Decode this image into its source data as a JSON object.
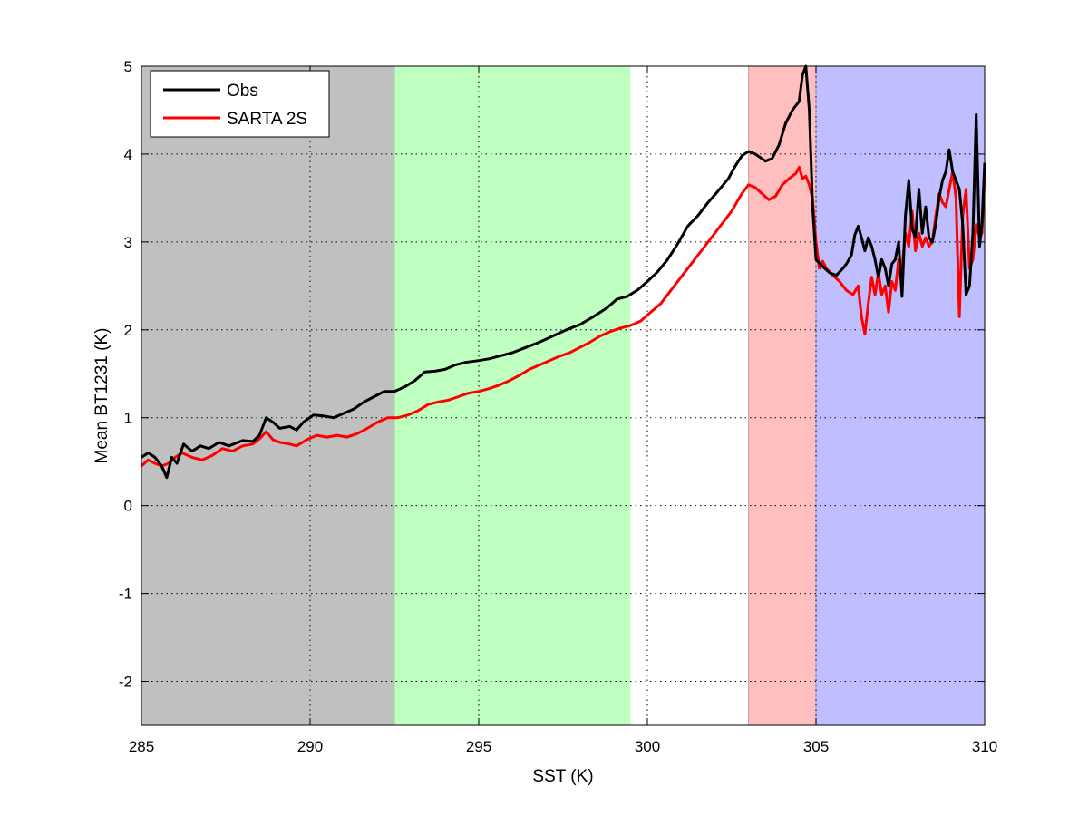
{
  "chart_data": {
    "type": "line",
    "title": "",
    "xlabel": "SST (K)",
    "ylabel": "Mean BT1231 (K)",
    "xlim": [
      285,
      310
    ],
    "ylim": [
      -2.5,
      5
    ],
    "xticks": [
      285,
      290,
      295,
      300,
      305,
      310
    ],
    "yticks": [
      -2,
      -1,
      0,
      1,
      2,
      3,
      4,
      5
    ],
    "xtick_labels": [
      "285",
      "290",
      "295",
      "300",
      "305",
      "310"
    ],
    "ytick_labels": [
      "-2",
      "-1",
      "0",
      "1",
      "2",
      "3",
      "4",
      "5"
    ],
    "grid": true,
    "legend_position": "top-left",
    "bands": [
      {
        "x0": 285,
        "x1": 292.5,
        "color": "#c0c0c0"
      },
      {
        "x0": 292.5,
        "x1": 299.5,
        "color": "#bfffbf"
      },
      {
        "x0": 303,
        "x1": 305,
        "color": "#ffbfbf"
      },
      {
        "x0": 305,
        "x1": 310,
        "color": "#bfbfff"
      }
    ],
    "series": [
      {
        "name": "Obs",
        "color": "#000000",
        "points": [
          [
            285.0,
            0.55
          ],
          [
            285.2,
            0.6
          ],
          [
            285.4,
            0.55
          ],
          [
            285.6,
            0.45
          ],
          [
            285.75,
            0.32
          ],
          [
            285.9,
            0.55
          ],
          [
            286.05,
            0.48
          ],
          [
            286.25,
            0.7
          ],
          [
            286.5,
            0.62
          ],
          [
            286.75,
            0.68
          ],
          [
            287.0,
            0.65
          ],
          [
            287.3,
            0.72
          ],
          [
            287.6,
            0.68
          ],
          [
            288.0,
            0.74
          ],
          [
            288.3,
            0.73
          ],
          [
            288.5,
            0.8
          ],
          [
            288.7,
            1.0
          ],
          [
            288.9,
            0.95
          ],
          [
            289.1,
            0.88
          ],
          [
            289.4,
            0.9
          ],
          [
            289.6,
            0.86
          ],
          [
            289.8,
            0.95
          ],
          [
            290.1,
            1.03
          ],
          [
            290.4,
            1.02
          ],
          [
            290.7,
            1.0
          ],
          [
            291.0,
            1.05
          ],
          [
            291.3,
            1.1
          ],
          [
            291.6,
            1.18
          ],
          [
            291.9,
            1.24
          ],
          [
            292.2,
            1.3
          ],
          [
            292.5,
            1.3
          ],
          [
            292.8,
            1.35
          ],
          [
            293.1,
            1.42
          ],
          [
            293.4,
            1.52
          ],
          [
            293.7,
            1.53
          ],
          [
            294.0,
            1.55
          ],
          [
            294.3,
            1.6
          ],
          [
            294.6,
            1.63
          ],
          [
            295.0,
            1.65
          ],
          [
            295.3,
            1.67
          ],
          [
            295.6,
            1.7
          ],
          [
            296.0,
            1.74
          ],
          [
            296.4,
            1.8
          ],
          [
            296.8,
            1.86
          ],
          [
            297.2,
            1.93
          ],
          [
            297.6,
            2.0
          ],
          [
            298.0,
            2.06
          ],
          [
            298.4,
            2.15
          ],
          [
            298.8,
            2.25
          ],
          [
            299.1,
            2.35
          ],
          [
            299.4,
            2.38
          ],
          [
            299.7,
            2.45
          ],
          [
            300.0,
            2.55
          ],
          [
            300.3,
            2.66
          ],
          [
            300.6,
            2.8
          ],
          [
            300.9,
            2.98
          ],
          [
            301.2,
            3.18
          ],
          [
            301.5,
            3.3
          ],
          [
            301.8,
            3.45
          ],
          [
            302.1,
            3.58
          ],
          [
            302.4,
            3.72
          ],
          [
            302.6,
            3.86
          ],
          [
            302.8,
            3.98
          ],
          [
            303.0,
            4.03
          ],
          [
            303.2,
            4.0
          ],
          [
            303.5,
            3.92
          ],
          [
            303.7,
            3.95
          ],
          [
            303.9,
            4.1
          ],
          [
            304.1,
            4.35
          ],
          [
            304.3,
            4.5
          ],
          [
            304.5,
            4.6
          ],
          [
            304.6,
            4.9
          ],
          [
            304.7,
            5.0
          ],
          [
            304.8,
            4.5
          ],
          [
            304.9,
            3.4
          ],
          [
            305.0,
            2.8
          ],
          [
            305.2,
            2.72
          ],
          [
            305.4,
            2.65
          ],
          [
            305.6,
            2.62
          ],
          [
            305.8,
            2.7
          ],
          [
            305.9,
            2.75
          ],
          [
            306.05,
            2.85
          ],
          [
            306.15,
            3.08
          ],
          [
            306.25,
            3.18
          ],
          [
            306.35,
            3.05
          ],
          [
            306.45,
            2.9
          ],
          [
            306.55,
            3.05
          ],
          [
            306.65,
            2.95
          ],
          [
            306.75,
            2.8
          ],
          [
            306.85,
            2.6
          ],
          [
            306.95,
            2.8
          ],
          [
            307.05,
            2.7
          ],
          [
            307.15,
            2.5
          ],
          [
            307.25,
            2.75
          ],
          [
            307.35,
            2.8
          ],
          [
            307.45,
            3.0
          ],
          [
            307.55,
            2.38
          ],
          [
            307.65,
            3.3
          ],
          [
            307.75,
            3.7
          ],
          [
            307.85,
            3.15
          ],
          [
            307.95,
            3.05
          ],
          [
            308.05,
            3.6
          ],
          [
            308.15,
            3.1
          ],
          [
            308.25,
            3.4
          ],
          [
            308.35,
            3.05
          ],
          [
            308.45,
            3.0
          ],
          [
            308.55,
            3.2
          ],
          [
            308.65,
            3.5
          ],
          [
            308.75,
            3.7
          ],
          [
            308.85,
            3.8
          ],
          [
            308.95,
            4.05
          ],
          [
            309.05,
            3.8
          ],
          [
            309.15,
            3.7
          ],
          [
            309.25,
            3.6
          ],
          [
            309.35,
            3.2
          ],
          [
            309.45,
            2.4
          ],
          [
            309.55,
            2.5
          ],
          [
            309.65,
            3.1
          ],
          [
            309.75,
            4.45
          ],
          [
            309.85,
            2.95
          ],
          [
            309.92,
            3.2
          ],
          [
            310.0,
            3.9
          ]
        ]
      },
      {
        "name": "SARTA 2S",
        "color": "#ff0000",
        "points": [
          [
            285.0,
            0.45
          ],
          [
            285.2,
            0.52
          ],
          [
            285.4,
            0.48
          ],
          [
            285.6,
            0.45
          ],
          [
            285.8,
            0.48
          ],
          [
            286.0,
            0.55
          ],
          [
            286.2,
            0.6
          ],
          [
            286.5,
            0.55
          ],
          [
            286.8,
            0.52
          ],
          [
            287.1,
            0.57
          ],
          [
            287.4,
            0.65
          ],
          [
            287.7,
            0.62
          ],
          [
            288.0,
            0.68
          ],
          [
            288.3,
            0.7
          ],
          [
            288.5,
            0.76
          ],
          [
            288.7,
            0.84
          ],
          [
            288.9,
            0.75
          ],
          [
            289.1,
            0.72
          ],
          [
            289.4,
            0.7
          ],
          [
            289.6,
            0.68
          ],
          [
            289.9,
            0.75
          ],
          [
            290.2,
            0.8
          ],
          [
            290.5,
            0.78
          ],
          [
            290.8,
            0.8
          ],
          [
            291.1,
            0.78
          ],
          [
            291.4,
            0.82
          ],
          [
            291.7,
            0.88
          ],
          [
            292.0,
            0.95
          ],
          [
            292.3,
            1.0
          ],
          [
            292.6,
            1.0
          ],
          [
            292.9,
            1.03
          ],
          [
            293.2,
            1.08
          ],
          [
            293.5,
            1.15
          ],
          [
            293.8,
            1.18
          ],
          [
            294.1,
            1.2
          ],
          [
            294.4,
            1.24
          ],
          [
            294.7,
            1.28
          ],
          [
            295.0,
            1.3
          ],
          [
            295.3,
            1.33
          ],
          [
            295.6,
            1.37
          ],
          [
            295.9,
            1.42
          ],
          [
            296.2,
            1.48
          ],
          [
            296.5,
            1.55
          ],
          [
            296.8,
            1.6
          ],
          [
            297.1,
            1.65
          ],
          [
            297.4,
            1.7
          ],
          [
            297.7,
            1.74
          ],
          [
            298.0,
            1.8
          ],
          [
            298.3,
            1.86
          ],
          [
            298.6,
            1.93
          ],
          [
            298.9,
            1.98
          ],
          [
            299.2,
            2.02
          ],
          [
            299.5,
            2.05
          ],
          [
            299.8,
            2.1
          ],
          [
            300.1,
            2.2
          ],
          [
            300.4,
            2.3
          ],
          [
            300.7,
            2.45
          ],
          [
            301.0,
            2.6
          ],
          [
            301.3,
            2.75
          ],
          [
            301.6,
            2.9
          ],
          [
            301.9,
            3.05
          ],
          [
            302.2,
            3.2
          ],
          [
            302.5,
            3.35
          ],
          [
            302.8,
            3.55
          ],
          [
            303.0,
            3.65
          ],
          [
            303.2,
            3.62
          ],
          [
            303.4,
            3.55
          ],
          [
            303.6,
            3.48
          ],
          [
            303.8,
            3.52
          ],
          [
            304.0,
            3.65
          ],
          [
            304.2,
            3.72
          ],
          [
            304.4,
            3.78
          ],
          [
            304.5,
            3.85
          ],
          [
            304.6,
            3.72
          ],
          [
            304.7,
            3.75
          ],
          [
            304.8,
            3.65
          ],
          [
            304.9,
            3.48
          ],
          [
            305.0,
            3.0
          ],
          [
            305.1,
            2.7
          ],
          [
            305.2,
            2.78
          ],
          [
            305.3,
            2.7
          ],
          [
            305.5,
            2.62
          ],
          [
            305.7,
            2.55
          ],
          [
            305.9,
            2.45
          ],
          [
            306.1,
            2.4
          ],
          [
            306.25,
            2.5
          ],
          [
            306.35,
            2.15
          ],
          [
            306.45,
            1.95
          ],
          [
            306.55,
            2.3
          ],
          [
            306.65,
            2.6
          ],
          [
            306.75,
            2.4
          ],
          [
            306.85,
            2.65
          ],
          [
            306.95,
            2.4
          ],
          [
            307.05,
            2.5
          ],
          [
            307.15,
            2.2
          ],
          [
            307.25,
            2.55
          ],
          [
            307.35,
            2.45
          ],
          [
            307.45,
            2.8
          ],
          [
            307.55,
            2.7
          ],
          [
            307.65,
            3.1
          ],
          [
            307.75,
            2.95
          ],
          [
            307.85,
            3.35
          ],
          [
            307.95,
            2.9
          ],
          [
            308.05,
            3.1
          ],
          [
            308.15,
            2.95
          ],
          [
            308.25,
            3.05
          ],
          [
            308.35,
            2.95
          ],
          [
            308.45,
            3.0
          ],
          [
            308.55,
            3.3
          ],
          [
            308.65,
            3.55
          ],
          [
            308.75,
            3.45
          ],
          [
            308.85,
            3.4
          ],
          [
            308.95,
            3.6
          ],
          [
            309.05,
            3.8
          ],
          [
            309.15,
            3.5
          ],
          [
            309.25,
            2.15
          ],
          [
            309.35,
            3.3
          ],
          [
            309.45,
            3.6
          ],
          [
            309.55,
            2.7
          ],
          [
            309.65,
            2.8
          ],
          [
            309.75,
            3.2
          ],
          [
            309.85,
            3.05
          ],
          [
            309.92,
            3.1
          ],
          [
            310.0,
            3.75
          ]
        ]
      }
    ]
  }
}
